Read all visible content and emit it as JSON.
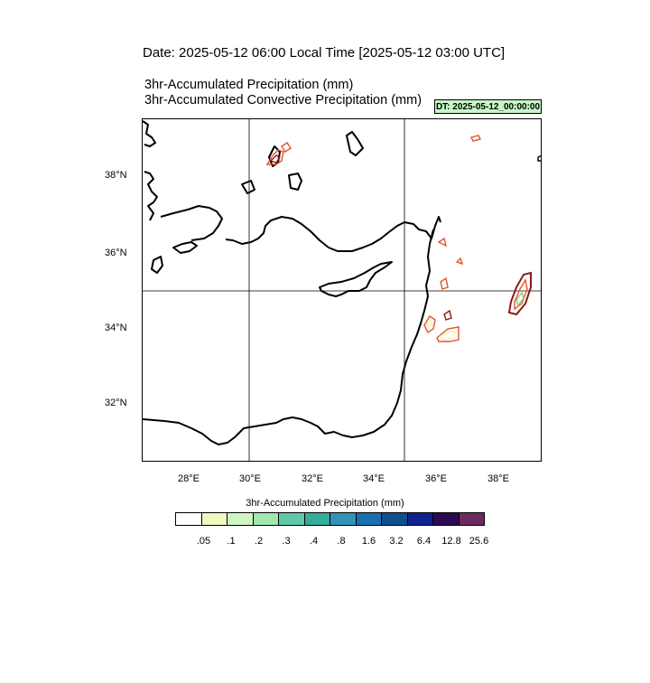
{
  "header": {
    "date_line": "Date: 2025-05-12  06:00 Local Time [2025-05-12  03:00 UTC]",
    "title_1": "3hr-Accumulated Precipitation   (mm)",
    "title_2": "3hr-Accumulated Convective Precipitation   (mm)",
    "dt_badge": "DT: 2025-05-12_00:00:00"
  },
  "map": {
    "lon_labels": [
      "28°E",
      "30°E",
      "32°E",
      "34°E",
      "36°E",
      "38°E"
    ],
    "lat_labels": [
      "38°N",
      "36°N",
      "34°N",
      "32°N"
    ],
    "gridlines": {
      "lon": [
        30,
        35
      ],
      "lat": [
        35
      ]
    },
    "coastline_color": "#000000",
    "contour_colors": [
      "#e3542b",
      "#8b1a1a",
      "#f3f3b0",
      "#7fcf7f"
    ]
  },
  "colorbar": {
    "title": "3hr-Accumulated Precipitation  (mm)",
    "colors": [
      "#ffffff",
      "#eef8c0",
      "#d0f5c5",
      "#9fe8b0",
      "#5fc8a8",
      "#35ad9c",
      "#3392b8",
      "#1a6fb0",
      "#0e4f90",
      "#10228f",
      "#2c0a52",
      "#6b2a5f"
    ],
    "labels": [
      ".05",
      ".1",
      ".2",
      ".3",
      ".4",
      ".8",
      "1.6",
      "3.2",
      "6.4",
      "12.8",
      "25.6"
    ]
  }
}
